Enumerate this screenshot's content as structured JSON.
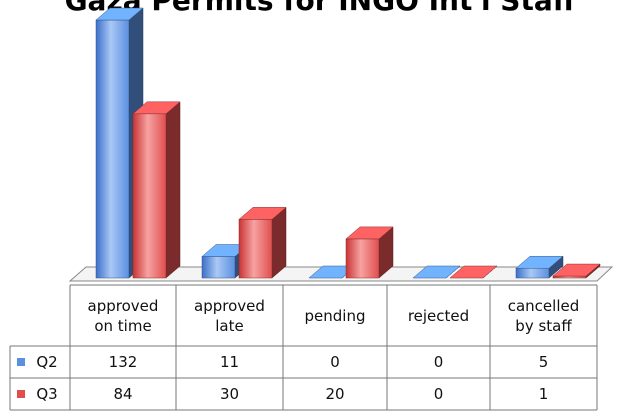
{
  "chart_data": {
    "type": "bar3d",
    "title": "Gaza Permits for INGO Int'l Staff",
    "categories": [
      "approved on time",
      "approved late",
      "pending",
      "rejected",
      "cancelled by staff"
    ],
    "series": [
      {
        "name": "Q2",
        "color": "#5b8fe0",
        "values": [
          132,
          11,
          0,
          0,
          5
        ]
      },
      {
        "name": "Q3",
        "color": "#e04e4e",
        "values": [
          84,
          30,
          20,
          0,
          1
        ]
      }
    ],
    "data_table": true
  }
}
